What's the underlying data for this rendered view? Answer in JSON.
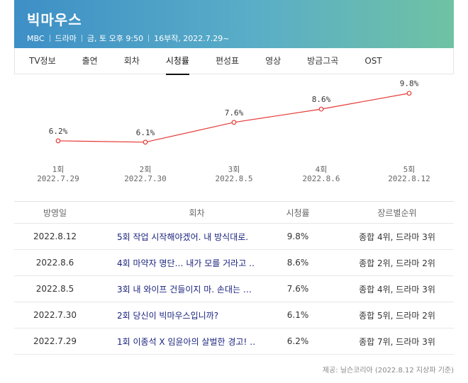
{
  "header": {
    "title": "빅마우스",
    "meta": [
      "MBC",
      "드라마",
      "금, 토 오후 9:50",
      "16부작, 2022.7.29~"
    ],
    "gradient": [
      "#3d8fc6",
      "#6fc2a3"
    ]
  },
  "tabs": [
    {
      "label": "TV정보",
      "active": false
    },
    {
      "label": "출연",
      "active": false
    },
    {
      "label": "회차",
      "active": false
    },
    {
      "label": "시청률",
      "active": true
    },
    {
      "label": "편성표",
      "active": false
    },
    {
      "label": "영상",
      "active": false
    },
    {
      "label": "방금그곡",
      "active": false
    },
    {
      "label": "OST",
      "active": false
    }
  ],
  "chart_data": {
    "type": "line",
    "line_color": "#e53935",
    "ylim": [
      5.5,
      10
    ],
    "points": [
      {
        "episode": "1회",
        "date": "2022.7.29",
        "value": 6.2,
        "label": "6.2%"
      },
      {
        "episode": "2회",
        "date": "2022.7.30",
        "value": 6.1,
        "label": "6.1%"
      },
      {
        "episode": "3회",
        "date": "2022.8.5",
        "value": 7.6,
        "label": "7.6%"
      },
      {
        "episode": "4회",
        "date": "2022.8.6",
        "value": 8.6,
        "label": "8.6%"
      },
      {
        "episode": "5회",
        "date": "2022.8.12",
        "value": 9.8,
        "label": "9.8%"
      }
    ]
  },
  "table": {
    "headers": [
      "방영일",
      "회차",
      "시청률",
      "장르별순위"
    ],
    "rows": [
      {
        "date": "2022.8.12",
        "title": "5회 작업 시작해야겠어. 내 방식대로.",
        "rating": "9.8%",
        "rank": "종합 4위, 드라마 3위"
      },
      {
        "date": "2022.8.6",
        "title": "4회 마약자 명단… 내가 모를 거라고 …",
        "rating": "8.6%",
        "rank": "종합 2위, 드라마 2위"
      },
      {
        "date": "2022.8.5",
        "title": "3회 내 와이프 건들이지 마. 손대는 …",
        "rating": "7.6%",
        "rank": "종합 4위, 드라마 3위"
      },
      {
        "date": "2022.7.30",
        "title": "2회 당신이 빅마우스입니까?",
        "rating": "6.1%",
        "rank": "종합 5위, 드라마 2위"
      },
      {
        "date": "2022.7.29",
        "title": "1회 이종석 X 임윤아의 살벌한 경고! …",
        "rating": "6.2%",
        "rank": "종합 7위, 드라마 3위"
      }
    ]
  },
  "footnote": "제공: 닐슨코리아 (2022.8.12 지상파 기준)"
}
